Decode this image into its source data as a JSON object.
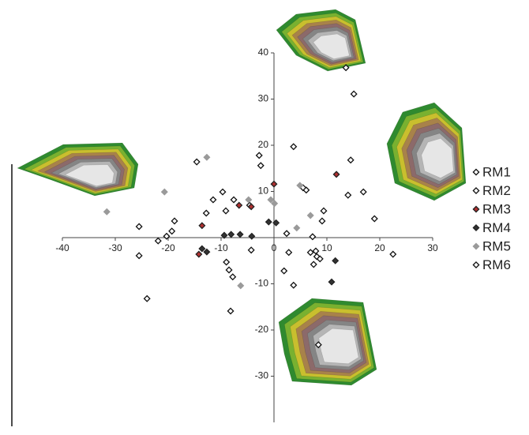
{
  "chart_data": {
    "type": "scatter",
    "xlim": [
      -40,
      30
    ],
    "xticks": [
      -40,
      -30,
      -20,
      -10,
      0,
      10,
      20,
      30
    ],
    "ylim": [
      -40,
      40
    ],
    "yticks": [
      -30,
      -20,
      -10,
      10,
      20,
      30,
      40
    ],
    "series": [
      {
        "name": "RM1",
        "color": "#111111",
        "filled": false,
        "x": [
          13.6,
          3.7,
          -2.8,
          -2.5,
          5.5,
          6.1,
          14.0,
          16.9,
          -9.7,
          -7.6,
          -9.1,
          -4.6,
          -12.8,
          9.4
        ],
        "values": [
          36.8,
          19.7,
          17.8,
          15.6,
          10.8,
          10.3,
          9.2,
          9.9,
          9.9,
          8.2,
          5.8,
          7.0,
          5.3,
          5.8
        ]
      },
      {
        "name": "RM2",
        "color": "#111111",
        "filled": false,
        "x": [
          15.1,
          14.5,
          -14.6,
          9.1,
          19.0,
          -25.5,
          -18.8,
          -19.3,
          -20.3,
          -21.9,
          -25.5,
          -24.0,
          -11.5
        ],
        "values": [
          31.1,
          16.8,
          16.4,
          3.6,
          4.1,
          2.4,
          3.6,
          1.4,
          0.3,
          -0.7,
          -3.9,
          -13.2,
          8.2
        ]
      },
      {
        "name": "RM3",
        "color": "#b03030",
        "filled": true,
        "x": [
          -13.6,
          -14.2,
          -6.6,
          0.0,
          11.8,
          -4.3
        ],
        "values": [
          2.6,
          -3.6,
          7.0,
          11.6,
          13.7,
          6.7
        ]
      },
      {
        "name": "RM4",
        "color": "#333333",
        "filled": true,
        "x": [
          -13.6,
          -12.7,
          -9.4,
          -8.1,
          -6.4,
          -4.2,
          -1.0,
          0.4,
          10.9,
          11.6
        ],
        "values": [
          -2.4,
          -3.1,
          0.5,
          0.7,
          0.7,
          0.3,
          3.4,
          3.2,
          -9.6,
          -5.0
        ]
      },
      {
        "name": "RM5",
        "color": "#9a9a9a",
        "filled": true,
        "x": [
          -31.6,
          -20.7,
          -12.7,
          -4.8,
          -6.3,
          -0.6,
          0.1,
          4.9,
          4.3,
          6.9
        ],
        "values": [
          5.6,
          9.9,
          17.4,
          8.2,
          -10.4,
          8.2,
          7.4,
          11.3,
          2.1,
          4.8
        ]
      },
      {
        "name": "RM6",
        "color": "#111111",
        "filled": false,
        "x": [
          -4.3,
          -9.0,
          -8.5,
          -7.8,
          -8.2,
          2.4,
          2.8,
          1.9,
          3.7,
          6.9,
          7.3,
          7.9,
          8.1,
          7.5,
          8.7,
          22.5,
          8.4
        ],
        "values": [
          -2.7,
          -5.3,
          -7.0,
          -8.5,
          -15.9,
          0.9,
          -3.2,
          -7.2,
          -10.3,
          -3.2,
          0.2,
          -2.9,
          -4.1,
          -5.8,
          -4.6,
          -3.6,
          -23.2
        ]
      }
    ]
  }
}
